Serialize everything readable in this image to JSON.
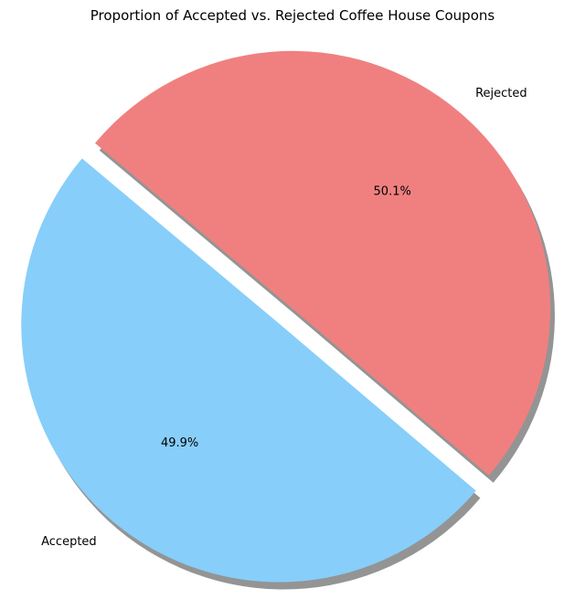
{
  "chart_data": {
    "type": "pie",
    "title": "Proportion of Accepted vs. Rejected Coffee House Coupons",
    "categories": [
      "Accepted",
      "Rejected"
    ],
    "values": [
      49.9,
      50.1
    ],
    "percent_labels": [
      "49.9%",
      "50.1%"
    ],
    "colors": [
      "#87CEFA",
      "#F08080"
    ],
    "exploded": "Accepted",
    "shadow": true,
    "start_angle_deg": 140
  }
}
